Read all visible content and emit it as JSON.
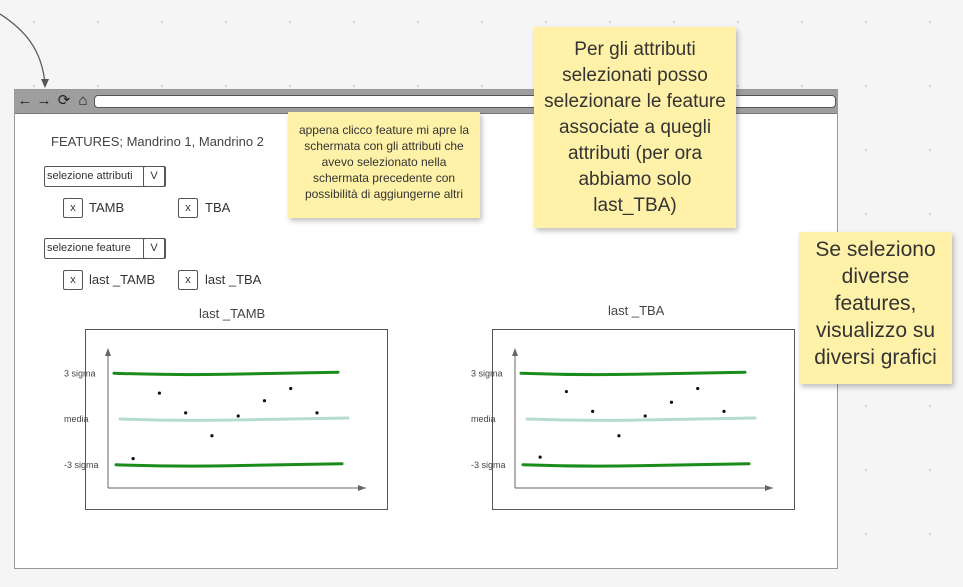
{
  "browser": {
    "icons": [
      "back-arrow-icon",
      "forward-arrow-icon",
      "reload-icon",
      "home-icon"
    ],
    "glyphs": {
      "back": "←",
      "forward": "→",
      "reload": "⟳",
      "home": "⌂"
    }
  },
  "page": {
    "features_title": "FEATURES; Mandrino 1, Mandrino 2",
    "attribute_select": {
      "label": "selezione attributi",
      "arrow": "V"
    },
    "attribute_checks": [
      {
        "mark": "x",
        "label": "TAMB"
      },
      {
        "mark": "x",
        "label": "TBA"
      }
    ],
    "feature_select": {
      "label": "selezione feature",
      "arrow": "V"
    },
    "feature_checks": [
      {
        "mark": "x",
        "label": "last _TAMB"
      },
      {
        "mark": "x",
        "label": "last _TBA"
      }
    ]
  },
  "chart_data": [
    {
      "type": "scatter",
      "title": "last _TAMB",
      "level_labels": [
        "3 sigma",
        "media",
        "-3 sigma"
      ],
      "levels": {
        "upper": 3,
        "mean": 0,
        "lower": -3
      },
      "points": [
        {
          "x": 1,
          "y": -2.6
        },
        {
          "x": 2,
          "y": 1.7
        },
        {
          "x": 3,
          "y": 0.4
        },
        {
          "x": 4,
          "y": -1.1
        },
        {
          "x": 5,
          "y": 0.2
        },
        {
          "x": 6,
          "y": 1.2
        },
        {
          "x": 7,
          "y": 2.0
        },
        {
          "x": 8,
          "y": 0.4
        }
      ],
      "colors": {
        "limit": "#1a8c1a",
        "mean": "#b7dccd",
        "point": "#111111",
        "axis": "#666666"
      }
    },
    {
      "type": "scatter",
      "title": "last _TBA",
      "level_labels": [
        "3 sigma",
        "media",
        "-3 sigma"
      ],
      "levels": {
        "upper": 3,
        "mean": 0,
        "lower": -3
      },
      "points": [
        {
          "x": 1,
          "y": -2.5
        },
        {
          "x": 2,
          "y": 1.8
        },
        {
          "x": 3,
          "y": 0.5
        },
        {
          "x": 4,
          "y": -1.1
        },
        {
          "x": 5,
          "y": 0.2
        },
        {
          "x": 6,
          "y": 1.1
        },
        {
          "x": 7,
          "y": 2.0
        },
        {
          "x": 8,
          "y": 0.5
        }
      ],
      "colors": {
        "limit": "#1a8c1a",
        "mean": "#b7dccd",
        "point": "#111111",
        "axis": "#666666"
      }
    }
  ],
  "notes": {
    "note1": "appena clicco feature mi apre la schermata con gli attributi che avevo selezionato nella schermata precedente con possibilità di aggiungerne altri",
    "note2": "Per gli attributi selezionati posso selezionare le feature associate a quegli attributi (per ora abbiamo solo last_TBA)",
    "note3": "Se seleziono diverse features, visualizzo su diversi grafici"
  },
  "colors": {
    "sticky": "#fff2a8",
    "canvas": "#f5f5f5",
    "toolbar": "#9e9e9e"
  }
}
